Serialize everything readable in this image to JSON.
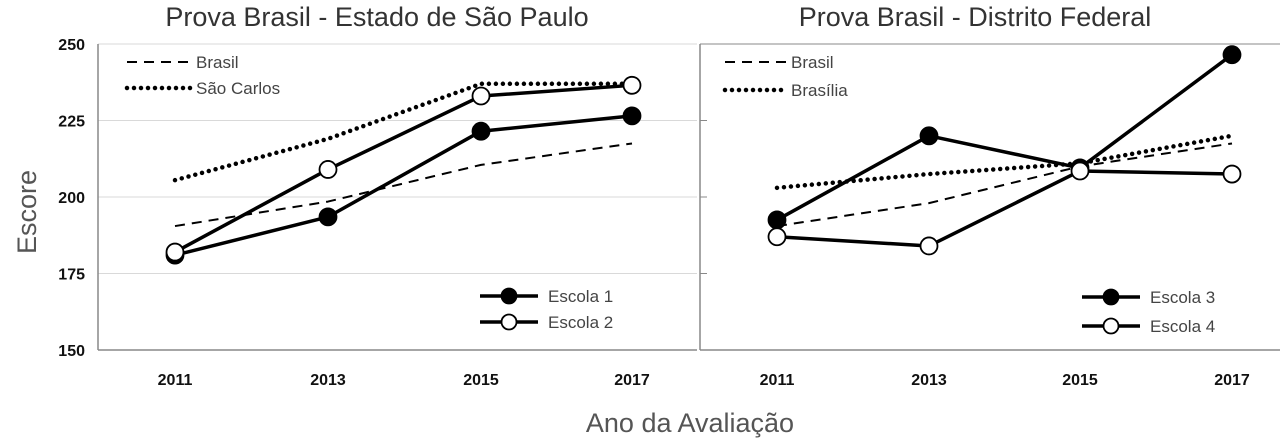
{
  "chart_data": [
    {
      "type": "line",
      "title": "Prova Brasil - Estado de São Paulo",
      "x": [
        "2011",
        "2013",
        "2015",
        "2017"
      ],
      "ylim": [
        150,
        250
      ],
      "yticks": [
        150,
        175,
        200,
        225,
        250
      ],
      "grid": true,
      "series": [
        {
          "name": "Brasil",
          "style": "dashed",
          "marker": "none",
          "values": [
            190.5,
            198.5,
            210.5,
            217.5
          ]
        },
        {
          "name": "São Carlos",
          "style": "dotted",
          "marker": "none",
          "values": [
            205.5,
            219,
            237,
            237
          ]
        },
        {
          "name": "Escola 1",
          "style": "solid",
          "marker": "filled",
          "values": [
            181,
            193.5,
            221.5,
            226.5
          ]
        },
        {
          "name": "Escola 2",
          "style": "solid",
          "marker": "open",
          "values": [
            182,
            209,
            233,
            236.5
          ]
        }
      ],
      "legend_top": [
        "Brasil",
        "São Carlos"
      ],
      "legend_bottom": [
        "Escola 1",
        "Escola 2"
      ]
    },
    {
      "type": "line",
      "title": "Prova Brasil - Distrito Federal",
      "x": [
        "2011",
        "2013",
        "2015",
        "2017"
      ],
      "ylim": [
        150,
        250
      ],
      "yticks": [
        150,
        175,
        200,
        225,
        250
      ],
      "grid": false,
      "series": [
        {
          "name": "Brasil",
          "style": "dashed",
          "marker": "none",
          "values": [
            190.5,
            198,
            210,
            217.5
          ]
        },
        {
          "name": "Brasília",
          "style": "dotted",
          "marker": "none",
          "values": [
            203,
            207.5,
            211,
            220
          ]
        },
        {
          "name": "Escola 3",
          "style": "solid",
          "marker": "filled",
          "values": [
            192.5,
            220,
            209.5,
            246.5
          ]
        },
        {
          "name": "Escola 4",
          "style": "solid",
          "marker": "open",
          "values": [
            187,
            184,
            208.5,
            207.5
          ]
        }
      ],
      "legend_top": [
        "Brasil",
        "Brasília"
      ],
      "legend_bottom": [
        "Escola 3",
        "Escola 4"
      ]
    }
  ],
  "shared": {
    "ylabel": "Escore",
    "xlabel": "Ano da Avaliação"
  }
}
